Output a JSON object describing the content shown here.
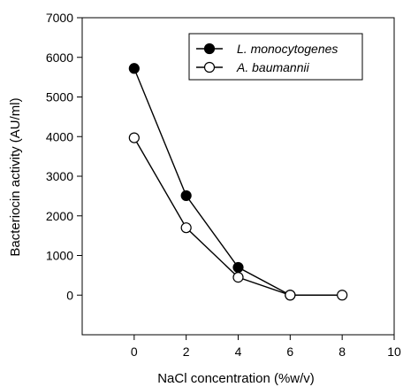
{
  "chart_data": {
    "type": "line",
    "title": "",
    "xlabel": "NaCl concentration (%w/v)",
    "ylabel": "Bacteriocin activity (AU/ml)",
    "xlim": [
      -2,
      10
    ],
    "ylim": [
      -1000,
      7000
    ],
    "xticks": [
      0,
      2,
      4,
      6,
      8,
      10
    ],
    "yticks": [
      0,
      1000,
      2000,
      3000,
      4000,
      5000,
      6000,
      7000
    ],
    "grid": false,
    "legend_position": "top-right",
    "series": [
      {
        "name": "L. monocytogenes",
        "marker": "filled-circle",
        "x": [
          0,
          2,
          4,
          6
        ],
        "y": [
          5720,
          2510,
          700,
          0
        ]
      },
      {
        "name": "A. baumannii",
        "marker": "open-circle",
        "x": [
          0,
          2,
          4,
          6,
          8
        ],
        "y": [
          3970,
          1700,
          450,
          0,
          0
        ]
      }
    ],
    "colors": {
      "line": "#000000",
      "filled_marker": "#000000",
      "open_marker_fill": "#ffffff"
    }
  }
}
